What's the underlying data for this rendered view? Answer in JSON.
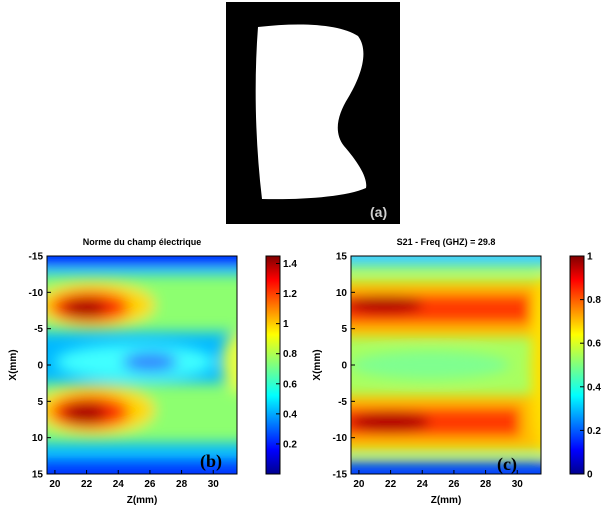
{
  "panel_a": {
    "label": "(a)",
    "background": "#000000",
    "shape_color": "#ffffff"
  },
  "chart_data": [
    {
      "type": "heatmap",
      "panel": "(b)",
      "title": "Norme du champ électrique",
      "xlabel": "Z(mm)",
      "ylabel": "X(mm)",
      "xlim": [
        19.5,
        31.5
      ],
      "ylim": [
        -15,
        15
      ],
      "y_reversed": true,
      "xticks": [
        20,
        22,
        24,
        26,
        28,
        30
      ],
      "yticks": [
        -15,
        -10,
        -5,
        0,
        5,
        10,
        15
      ],
      "colorbar": {
        "min": 0,
        "max": 1.45,
        "ticks": [
          0.2,
          0.4,
          0.6,
          0.8,
          1,
          1.2,
          1.4
        ],
        "colormap": "jet"
      },
      "features": [
        {
          "z": 22.5,
          "x": -7,
          "value": 1.45,
          "note": "upper maximum lobe"
        },
        {
          "z": 22.5,
          "x": 7,
          "value": 1.45,
          "note": "lower maximum lobe"
        },
        {
          "z": 25.5,
          "x": 0,
          "value": 0.45,
          "note": "central minimum"
        },
        {
          "z": 31,
          "x": 0,
          "value": 0.95,
          "note": "secondary lobe at right edge"
        },
        {
          "z": 19.5,
          "x": -15,
          "value": 0.1,
          "note": "weak field at edges"
        }
      ]
    },
    {
      "type": "heatmap",
      "panel": "(c)",
      "title": "S21 - Freq (GHZ) = 29.8",
      "xlabel": "Z(mm)",
      "ylabel": "X(mm)",
      "xlim": [
        19.5,
        31.5
      ],
      "ylim": [
        -15,
        15
      ],
      "y_reversed": false,
      "xticks": [
        20,
        22,
        24,
        26,
        28,
        30
      ],
      "yticks": [
        -15,
        -10,
        -5,
        0,
        5,
        10,
        15
      ],
      "colorbar": {
        "min": 0,
        "max": 1,
        "ticks": [
          0,
          0.2,
          0.4,
          0.6,
          0.8,
          1
        ],
        "colormap": "jet"
      },
      "features": [
        {
          "z": 22.5,
          "x": 7,
          "value": 1.0,
          "note": "upper maximum band"
        },
        {
          "z": 22.5,
          "x": -8,
          "value": 1.0,
          "note": "lower maximum band"
        },
        {
          "z": 25,
          "x": 0,
          "value": 0.5,
          "note": "central region"
        },
        {
          "z": 19.5,
          "x": -15,
          "value": 0.1,
          "note": "weak at edges"
        }
      ]
    }
  ]
}
